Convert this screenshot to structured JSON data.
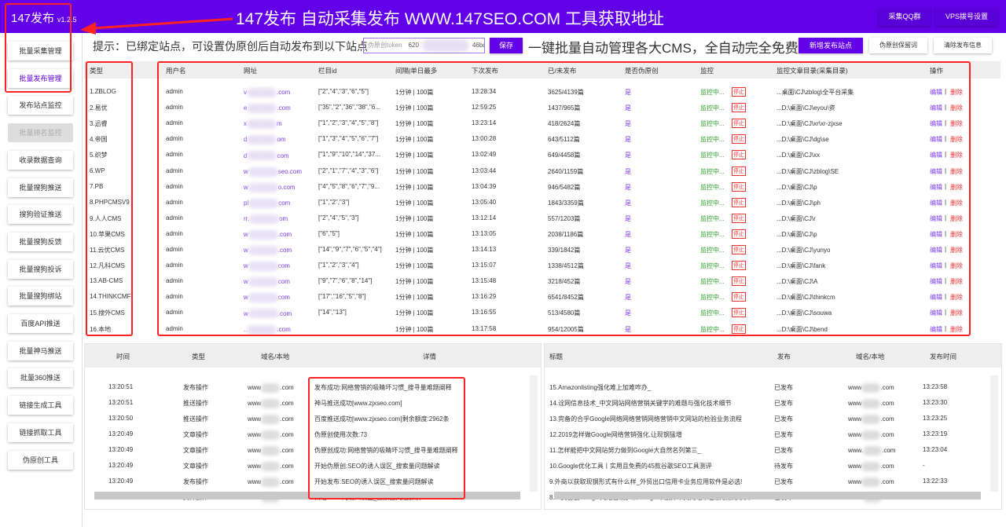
{
  "header": {
    "app_title": "147发布",
    "version": "v1.2.5",
    "banner": "147发布 自动采集发布 WWW.147SEO.COM 工具获取地址",
    "qq_group": "采集QQ群",
    "vps_settings": "VPS拨号设置"
  },
  "sidebar": {
    "items": [
      {
        "label": "批量采集管理",
        "state": "normal"
      },
      {
        "label": "批量发布管理",
        "state": "active"
      },
      {
        "label": "发布站点监控",
        "state": "normal"
      },
      {
        "label": "批量排名监控",
        "state": "disabled"
      },
      {
        "label": "收录数据查询",
        "state": "normal"
      },
      {
        "label": "批量搜狗推送",
        "state": "normal"
      },
      {
        "label": "搜狗验证推送",
        "state": "normal"
      },
      {
        "label": "批量搜狗反馈",
        "state": "normal"
      },
      {
        "label": "批量搜狗投诉",
        "state": "normal"
      },
      {
        "label": "批量搜狗绑站",
        "state": "normal"
      },
      {
        "label": "百度API推送",
        "state": "normal"
      },
      {
        "label": "批量神马推送",
        "state": "normal"
      },
      {
        "label": "批量360推送",
        "state": "normal"
      },
      {
        "label": "链接生成工具",
        "state": "normal"
      },
      {
        "label": "链接抓取工具",
        "state": "normal"
      },
      {
        "label": "伪原创工具",
        "state": "normal"
      }
    ]
  },
  "toolbar": {
    "hint": "提示：已绑定站点，可设置伪原创后自动发布到以下站点",
    "token_placeholder": "伪原创token",
    "token_prefix": "620",
    "token_suffix": "46bd4",
    "save": "保存",
    "slogan": "一键批量自动管理各大CMS，全自动完全免费",
    "add_site": "新增发布站点",
    "keep_words": "伪原创保留词",
    "clear_info": "清除发布信息"
  },
  "sites_table": {
    "headers": [
      "类型",
      "用户名",
      "网址",
      "栏目id",
      "间隔|单日最多",
      "下次发布",
      "已/未发布",
      "是否伪原创",
      "监控",
      "监控文章目录(采集目录)",
      "操作"
    ],
    "rows": [
      [
        "1.ZBLOG",
        "admin",
        "v",
        ".com",
        "[\"2\",\"4\",\"3\",\"6\",\"5\"]",
        "1分钟 | 100篇",
        "13:28:34",
        "3625/4139篇",
        "是",
        "...桌面\\CJ\\zblog\\全平台采集"
      ],
      [
        "2.易优",
        "admin",
        "e",
        ".com",
        "[\"35\",\"2\",\"36\",\"38\",\"6...",
        "1分钟 | 100篇",
        "12:59:25",
        "1437/965篇",
        "是",
        "...D:\\桌面\\CJ\\eyou\\资"
      ],
      [
        "3.迅睿",
        "admin",
        "x",
        "m",
        "[\"1\",\"2\",\"3\",\"4\",\"5\",\"8\"]",
        "1分钟 | 100篇",
        "13:23:14",
        "418/2624篇",
        "是",
        "...D:\\桌面\\CJ\\xr\\xr-zjxse"
      ],
      [
        "4.帝国",
        "admin",
        "d",
        "om",
        "[\"1\",\"3\",\"4\",\"5\",\"6\",\"7\"]",
        "1分钟 | 100篇",
        "13:00:28",
        "643/5112篇",
        "是",
        "...D:\\桌面\\CJ\\dg\\se"
      ],
      [
        "5.织梦",
        "admin",
        "d",
        "com",
        "[\"1\",\"9\",\"10\",\"14\",\"37...",
        "1分钟 | 100篇",
        "13:02:49",
        "649/4458篇",
        "是",
        "...D:\\桌面\\CJ\\xx"
      ],
      [
        "6.WP",
        "admin",
        "w",
        "seo.com",
        "[\"2\",\"1\",\"7\",\"4\",\"3\",\"6\"]",
        "1分钟 | 100篇",
        "13:03:44",
        "2640/1159篇",
        "是",
        "...D:\\桌面\\CJ\\zblog\\SE"
      ],
      [
        "7.PB",
        "admin",
        "w",
        "o.com",
        "[\"4\",\"5\",\"8\",\"6\",\"7\",\"9...",
        "1分钟 | 100篇",
        "13:04:39",
        "946/5482篇",
        "是",
        "...D:\\桌面\\CJ\\p"
      ],
      [
        "8.PHPCMSV9",
        "admin",
        "pl",
        "com",
        "[\"1\",\"2\",\"3\"]",
        "1分钟 | 100篇",
        "13:05:40",
        "1843/3359篇",
        "是",
        "...D:\\桌面\\CJ\\ph"
      ],
      [
        "9.人人CMS",
        "admin",
        "rr.",
        "om",
        "[\"2\",\"4\",\"5\",\"3\"]",
        "1分钟 | 100篇",
        "13:12:14",
        "557/1203篇",
        "是",
        "...D:\\桌面\\CJ\\r"
      ],
      [
        "10.苹果CMS",
        "admin",
        "w",
        ".com",
        "[\"6\",\"5\"]",
        "1分钟 | 100篇",
        "13:13:05",
        "2038/1186篇",
        "是",
        "...D:\\桌面\\CJ\\p"
      ],
      [
        "11.云优CMS",
        "admin",
        "w",
        ".com",
        "[\"14\",\"9\",\"7\",\"6\",\"5\",\"4\"]",
        "1分钟 | 100篇",
        "13:14:13",
        "339/1842篇",
        "是",
        "...D:\\桌面\\CJ\\yunyo"
      ],
      [
        "12.凡科CMS",
        "admin",
        "w",
        "com",
        "[\"1\",\"2\",\"3\",\"4\"]",
        "1分钟 | 100篇",
        "13:15:07",
        "1338/4512篇",
        "是",
        "...D:\\桌面\\CJ\\fank"
      ],
      [
        "13.AB-CMS",
        "admin",
        "w",
        "com",
        "[\"9\",\"7\",\"6\",\"8\",\"14\"]",
        "1分钟 | 100篇",
        "13:15:48",
        "3218/452篇",
        "是",
        "...D:\\桌面\\CJ\\A"
      ],
      [
        "14.THINKCMF",
        "admin",
        "w",
        "com",
        "[\"17\",\"16\",\"5\",\"8\"]",
        "1分钟 | 100篇",
        "13:16:29",
        "6541/8452篇",
        "是",
        "...D:\\桌面\\CJ\\thinkcm"
      ],
      [
        "15.搜外CMS",
        "admin",
        "w",
        ".com",
        "[\"14\",\"13\"]",
        "1分钟 | 100篇",
        "13:16:55",
        "513/4580篇",
        "是",
        "...D:\\桌面\\CJ\\souwa"
      ],
      [
        "16.本地",
        "admin",
        "..",
        ".com",
        "",
        "1分钟 | 100篇",
        "13:17:58",
        "954/12005篇",
        "是",
        "...D:\\桌面\\CJ\\bend"
      ]
    ],
    "monitoring": "监控中...",
    "stop": "停止",
    "edit": "编辑",
    "sep": "|",
    "delete": "删除"
  },
  "log_panel": {
    "headers": [
      "时间",
      "类型",
      "域名/本地",
      "详情"
    ],
    "rows": [
      [
        "13:20:51",
        "发布操作",
        "www",
        ".com",
        "发布成功:网络营销的吸睛坏习惯_搜寻量难题阐释"
      ],
      [
        "13:20:51",
        "推送操作",
        "www",
        ".com",
        "神马推送成功[www.zjxseo.com]"
      ],
      [
        "13:20:50",
        "推送操作",
        "www",
        ".com",
        "百度推送成功[www.zjxseo.com]剩余额度:2962条"
      ],
      [
        "13:20:49",
        "文章操作",
        "www",
        ".com",
        "伪原创使用次数:73"
      ],
      [
        "13:20:49",
        "文章操作",
        "www",
        ".com",
        "伪原创成功:网络营销的吸睛坏习惯_搜寻量难题阐释"
      ],
      [
        "13:20:49",
        "文章操作",
        "www",
        ".com",
        "开始伪原创:SEO的诱人误区_搜索量问题解读"
      ],
      [
        "13:20:49",
        "发布操作",
        "www",
        ".com",
        "开始发布:SEO的诱人误区_搜索量问题解读"
      ],
      [
        "13:20:47",
        "文件操作",
        "www",
        ".com",
        "新增:SEO的诱人误区_搜索量问题解读.txt"
      ]
    ]
  },
  "publish_panel": {
    "headers": [
      "标题",
      "发布",
      "域名/本地",
      "发布时间"
    ],
    "rows": [
      [
        "15.Amazonlisting强化难上加难咋办_",
        "已发布",
        "www",
        ".com",
        "13:23:58"
      ],
      [
        "14.诠网信息技术_中文网站网络营销关键字的难题与强化技术细节",
        "已发布",
        "www",
        ".com",
        "13:23:30"
      ],
      [
        "13.完备的合乎Google网络网络营销网络营销中文网站的检验业务流程",
        "已发布",
        "www",
        ".com",
        "13:23:25"
      ],
      [
        "12.2019怎样做Google网络营销强化,让现钢猛增",
        "已发布",
        "www",
        ".com",
        "13:23:19"
      ],
      [
        "11.怎样能把中文网站努力做到Google大自然名列第三_",
        "已发布",
        "www.",
        ".com",
        "13:23:04"
      ],
      [
        "10.Google优化工具丨实用且免费的45款谷歌SEO工具测评",
        "待发布",
        "www",
        ".com",
        "-"
      ],
      [
        "9.外商以获取现钢形式有什么样_外贸出口信用卡业务应用软件是必选!",
        "已发布",
        "www",
        ".com",
        "13:22:33"
      ],
      [
        "8.「莫雷县Google网络营销」从Google中删掉中文网站早已被收录于文本",
        "已发布",
        "www.",
        ".com",
        "13:22:27"
      ]
    ]
  },
  "colors": {
    "brand": "#6200ea",
    "link": "#7c3aed",
    "monitor": "#2a9d2a",
    "danger": "#e33333",
    "annotation": "#ff2222"
  }
}
